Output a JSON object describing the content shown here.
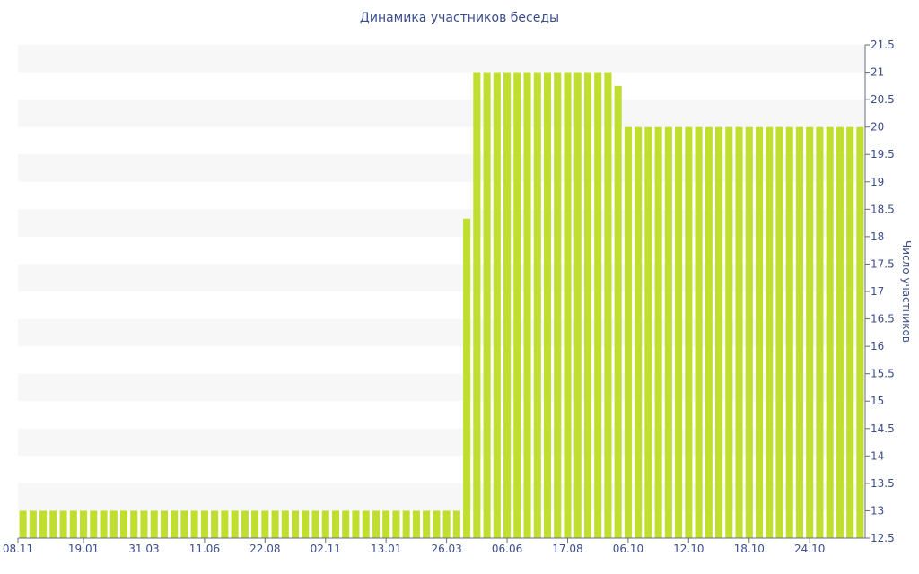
{
  "chart_data": {
    "type": "bar",
    "title": "Динамика участников беседы",
    "ylabel": "Число участников",
    "xlabel": "",
    "ylim": [
      12.5,
      21.5
    ],
    "yticks": [
      12.5,
      13,
      13.5,
      14,
      14.5,
      15,
      15.5,
      16,
      16.5,
      17,
      17.5,
      18,
      18.5,
      19,
      19.5,
      20,
      20.5,
      21,
      21.5
    ],
    "y_axis_position": "right",
    "grid": "alternating horizontal bands",
    "legend": "none",
    "x_tick_labels": [
      {
        "index": 0,
        "label": "08.11"
      },
      {
        "index": 6,
        "label": "19.01"
      },
      {
        "index": 12,
        "label": "31.03"
      },
      {
        "index": 18,
        "label": "11.06"
      },
      {
        "index": 24,
        "label": "22.08"
      },
      {
        "index": 30,
        "label": "02.11"
      },
      {
        "index": 36,
        "label": "13.01"
      },
      {
        "index": 42,
        "label": "26.03"
      },
      {
        "index": 48,
        "label": "06.06"
      },
      {
        "index": 54,
        "label": "17.08"
      },
      {
        "index": 60,
        "label": "06.10"
      },
      {
        "index": 66,
        "label": "12.10"
      },
      {
        "index": 72,
        "label": "18.10"
      },
      {
        "index": 78,
        "label": "24.10"
      }
    ],
    "values": [
      13,
      13,
      13,
      13,
      13,
      13,
      13,
      13,
      13,
      13,
      13,
      13,
      13,
      13,
      13,
      13,
      13,
      13,
      13,
      13,
      13,
      13,
      13,
      13,
      13,
      13,
      13,
      13,
      13,
      13,
      13,
      13,
      13,
      13,
      13,
      13,
      13,
      13,
      13,
      13,
      13,
      13,
      13,
      13,
      18.33,
      21,
      21,
      21,
      21,
      21,
      21,
      21,
      21,
      21,
      21,
      21,
      21,
      21,
      21,
      20.75,
      20,
      20,
      20,
      20,
      20,
      20,
      20,
      20,
      20,
      20,
      20,
      20,
      20,
      20,
      20,
      20,
      20,
      20,
      20,
      20,
      20,
      20,
      20,
      20
    ],
    "bar_color": "#bfde2f"
  }
}
